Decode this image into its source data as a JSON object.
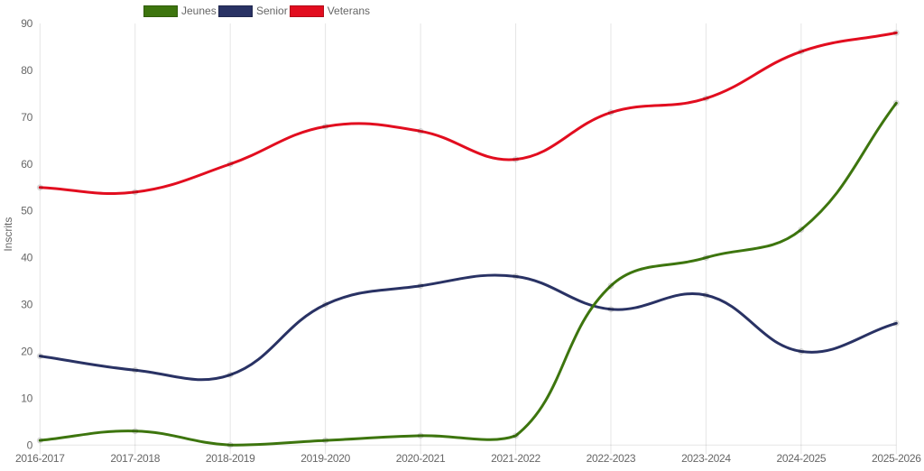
{
  "chart_data": {
    "type": "line",
    "title": "",
    "xlabel": "",
    "ylabel": "Inscrits",
    "categories": [
      "2016-2017",
      "2017-2018",
      "2018-2019",
      "2019-2020",
      "2020-2021",
      "2021-2022",
      "2022-2023",
      "2023-2024",
      "2024-2025",
      "2025-2026"
    ],
    "series": [
      {
        "name": "Jeunes",
        "color": "#3d750e",
        "values": [
          1,
          3,
          0,
          1,
          2,
          2,
          34,
          40,
          46,
          73
        ]
      },
      {
        "name": "Senior",
        "color": "#293264",
        "values": [
          19,
          16,
          15,
          30,
          34,
          36,
          29,
          32,
          20,
          26
        ]
      },
      {
        "name": "Veterans",
        "color": "#e20d1f",
        "values": [
          55,
          54,
          60,
          68,
          67,
          61,
          71,
          74,
          84,
          88
        ]
      }
    ],
    "ylim": [
      0,
      90
    ],
    "ytick_step": 10,
    "yticks": [
      0,
      10,
      20,
      30,
      40,
      50,
      60,
      70,
      80,
      90
    ],
    "grid": "vertical-only",
    "legend_position": "top",
    "line_style": "smooth-bezier",
    "line_tension": 0.4,
    "colors": {
      "grid": "rgba(0,0,0,0.1)",
      "axis_text": "#666666",
      "point_fill": "rgba(0,0,0,0.1)",
      "background": "#ffffff"
    }
  }
}
